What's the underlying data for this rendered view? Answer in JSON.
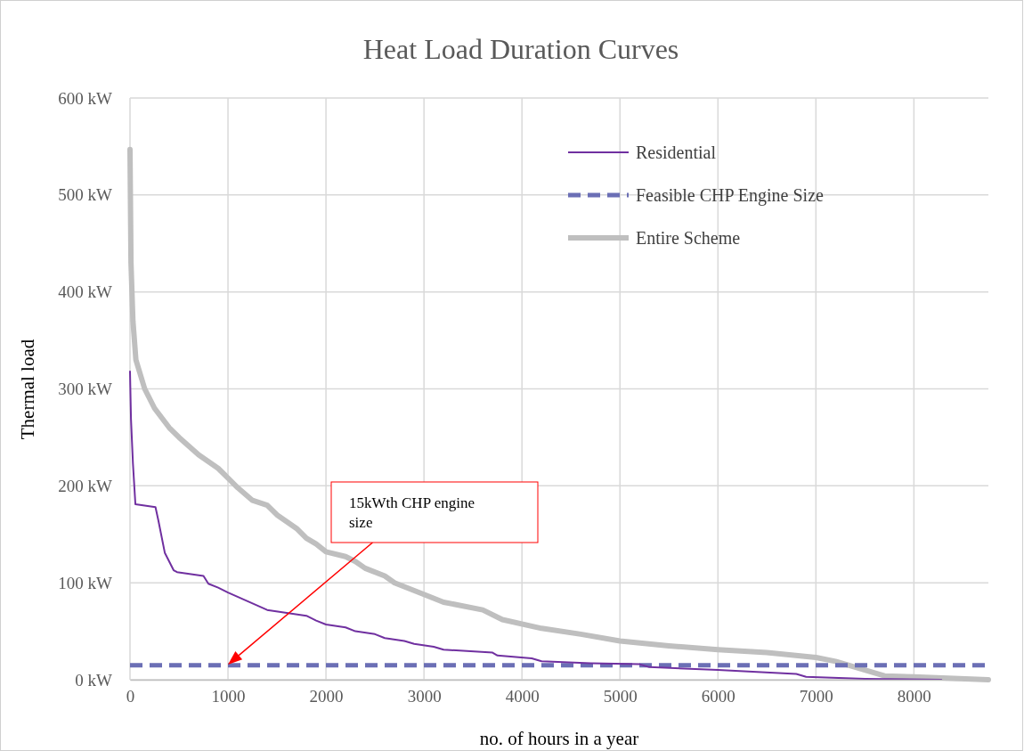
{
  "chart_data": {
    "type": "line",
    "title": "Heat Load Duration Curves",
    "xlabel": "no. of hours in a year",
    "ylabel": "Thermal load",
    "xlim": [
      0,
      8760
    ],
    "xticks": [
      0,
      1000,
      2000,
      3000,
      4000,
      5000,
      6000,
      7000,
      8000
    ],
    "ylim": [
      0,
      600
    ],
    "yticks": [
      {
        "value": 0,
        "label": "0 kW"
      },
      {
        "value": 100,
        "label": "100 kW"
      },
      {
        "value": 200,
        "label": "200 kW"
      },
      {
        "value": 300,
        "label": "300 kW"
      },
      {
        "value": 400,
        "label": "400 kW"
      },
      {
        "value": 500,
        "label": "500 kW"
      },
      {
        "value": 600,
        "label": "600 kW"
      }
    ],
    "grid": true,
    "legend": "top right",
    "series": [
      {
        "name": "Residential",
        "color": "#7030a0",
        "line_style": "solid",
        "x": [
          0,
          10,
          30,
          55,
          260,
          290,
          355,
          445,
          480,
          750,
          800,
          900,
          1000,
          1200,
          1400,
          1800,
          1900,
          2000,
          2200,
          2300,
          2500,
          2600,
          2800,
          2900,
          3100,
          3200,
          3700,
          3750,
          4100,
          4200,
          4700,
          5200,
          5300,
          6000,
          6800,
          6900,
          7500,
          8280
        ],
        "values": [
          318,
          269,
          223,
          181,
          178,
          164,
          131,
          113,
          111,
          107,
          99,
          95,
          90,
          81,
          72,
          66,
          61,
          57,
          54,
          50,
          47,
          43,
          40,
          37,
          34,
          31,
          28,
          25,
          22,
          19,
          17,
          16,
          13,
          10,
          6,
          3,
          1,
          0
        ]
      },
      {
        "name": "Feasible CHP Engine Size",
        "color": "#6b6fb5",
        "line_style": "dashed",
        "x": [
          0,
          8760
        ],
        "values": [
          15,
          15
        ]
      },
      {
        "name": "Entire Scheme",
        "color": "#bfbfbf",
        "line_style": "solid",
        "x": [
          0,
          10,
          30,
          60,
          150,
          250,
          400,
          500,
          700,
          900,
          1000,
          1100,
          1250,
          1400,
          1500,
          1700,
          1800,
          1900,
          2000,
          2200,
          2300,
          2400,
          2600,
          2700,
          3000,
          3200,
          3600,
          3800,
          4200,
          4600,
          5000,
          5500,
          6000,
          6500,
          7000,
          7200,
          7500,
          7700,
          8000,
          8760
        ],
        "values": [
          547,
          430,
          370,
          330,
          300,
          280,
          260,
          250,
          232,
          218,
          208,
          198,
          185,
          180,
          170,
          156,
          146,
          140,
          132,
          127,
          122,
          115,
          107,
          100,
          88,
          80,
          72,
          62,
          53,
          47,
          40,
          35,
          31,
          28,
          23,
          19,
          10,
          4,
          3,
          0
        ]
      }
    ],
    "annotations": [
      "15kWth CHP engine size"
    ]
  }
}
